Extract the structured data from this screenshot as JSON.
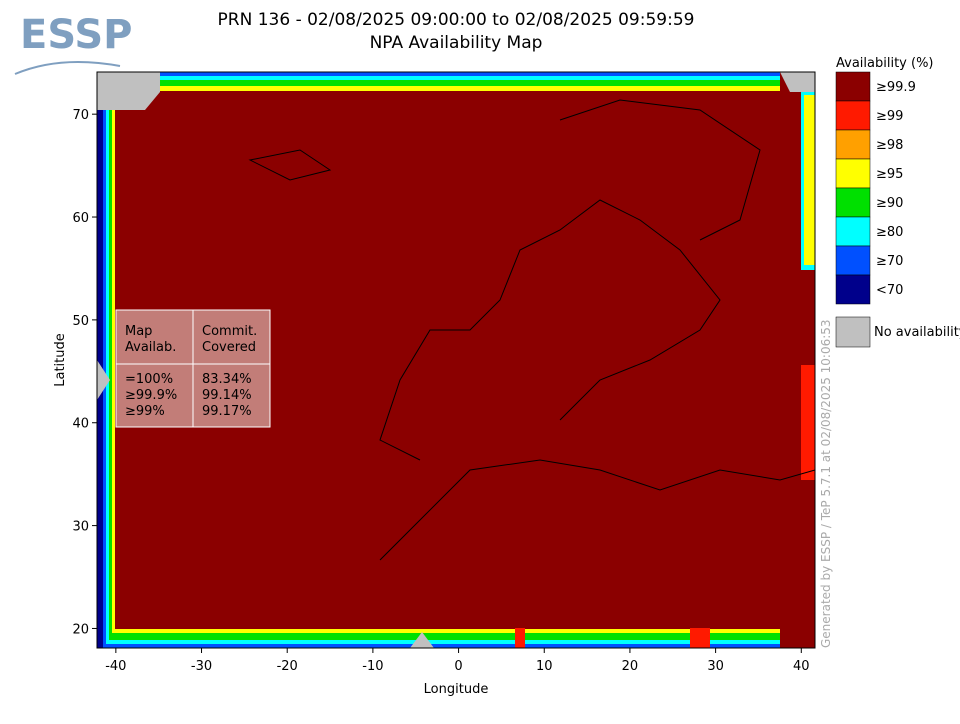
{
  "logo": "ESSP",
  "title": {
    "line1": "PRN 136 - 02/08/2025 09:00:00 to 02/08/2025 09:59:59",
    "line2": "NPA Availability Map"
  },
  "axes": {
    "x_label": "Longitude",
    "y_label": "Latitude",
    "xlim": [
      -42.2,
      41.6
    ],
    "ylim": [
      18.1,
      74.1
    ],
    "xticks": [
      -40,
      -30,
      -20,
      -10,
      0,
      10,
      20,
      30,
      40
    ],
    "yticks": [
      20,
      30,
      40,
      50,
      60,
      70
    ]
  },
  "legend": {
    "title": "Availability (%)",
    "items": [
      {
        "label": "≥99.9",
        "color": "#8b0000"
      },
      {
        "label": "≥99",
        "color": "#ff1a00"
      },
      {
        "label": "≥98",
        "color": "#ffa000"
      },
      {
        "label": "≥95",
        "color": "#ffff00"
      },
      {
        "label": "≥90",
        "color": "#00e000"
      },
      {
        "label": "≥80",
        "color": "#00ffff"
      },
      {
        "label": "≥70",
        "color": "#0050ff"
      },
      {
        "label": "<70",
        "color": "#00008b"
      }
    ],
    "no_data": {
      "label": "No availability",
      "color": "#c0c0c0"
    }
  },
  "stats_table": {
    "header": [
      [
        "Map",
        "Availab."
      ],
      [
        "Commit.",
        "Covered"
      ]
    ],
    "rows": [
      [
        "=100%",
        "83.34%"
      ],
      [
        "≥99.9%",
        "99.14%"
      ],
      [
        "≥99%",
        "99.17%"
      ]
    ]
  },
  "watermark": "Generated by ESSP / TeP 5.7.1 at 02/08/2025 10:06:53"
}
